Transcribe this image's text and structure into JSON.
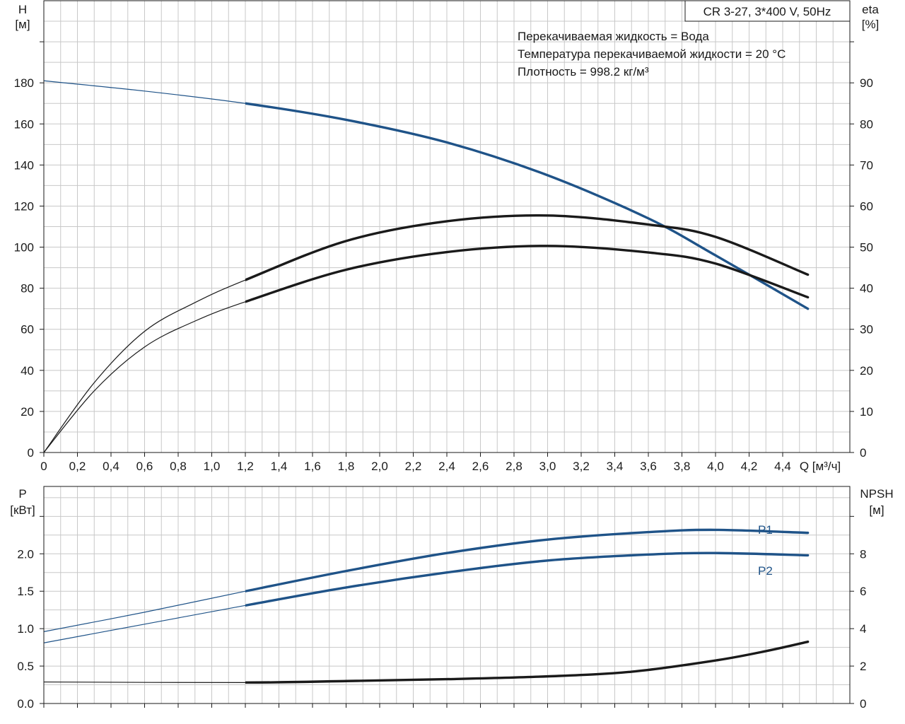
{
  "legend_box": {
    "text": "CR 3-27, 3*400 V, 50Hz"
  },
  "notes": [
    "Перекачиваемая жидкость = Вода",
    "Температура перекачиваемой жидкости = 20 °C",
    "Плотность = 998.2 кг/м³"
  ],
  "chart_data": [
    {
      "type": "line",
      "panel": "top",
      "x_label": "Q [м³/ч]",
      "xlim": [
        0,
        4.8
      ],
      "x_ticks": [
        0,
        0.2,
        0.4,
        0.6,
        0.8,
        1.0,
        1.2,
        1.4,
        1.6,
        1.8,
        2.0,
        2.2,
        2.4,
        2.6,
        2.8,
        3.0,
        3.2,
        3.4,
        3.6,
        3.8,
        4.0,
        4.2,
        4.4
      ],
      "x_tick_labels": [
        "0",
        "0,2",
        "0,4",
        "0,6",
        "0,8",
        "1,0",
        "1,2",
        "1,4",
        "1,6",
        "1,8",
        "2,0",
        "2,2",
        "2,4",
        "2,6",
        "2,8",
        "3,0",
        "3,2",
        "3,4",
        "3,6",
        "3,8",
        "4,0",
        "4,2",
        "4,4"
      ],
      "y_left": {
        "label_line1": "H",
        "label_line2": "[м]",
        "lim": [
          0,
          220
        ],
        "ticks": [
          0,
          20,
          40,
          60,
          80,
          100,
          120,
          140,
          160,
          180
        ]
      },
      "y_right": {
        "label_line1": "eta",
        "label_line2": "[%]",
        "lim": [
          0,
          110
        ],
        "ticks": [
          0,
          10,
          20,
          30,
          40,
          50,
          60,
          70,
          80,
          90
        ]
      },
      "grid": true,
      "operating_range_q": [
        1.2,
        4.55
      ],
      "series": [
        {
          "axis": "left",
          "color": "#1f5388",
          "x": [
            0,
            0.6,
            1.2,
            1.8,
            2.4,
            3.0,
            3.6,
            4.0,
            4.55
          ],
          "y": [
            181,
            176,
            170,
            162,
            151,
            135,
            114,
            96,
            70
          ]
        },
        {
          "axis": "right",
          "color": "#1a1a1a",
          "x": [
            0,
            0.3,
            0.6,
            0.9,
            1.2,
            1.8,
            2.4,
            3.0,
            3.6,
            4.0,
            4.55
          ],
          "y": [
            0,
            17,
            29.5,
            36.5,
            42,
            51.5,
            56.3,
            57.7,
            55.5,
            52.5,
            43.3
          ]
        },
        {
          "axis": "right",
          "color": "#1a1a1a",
          "x": [
            0,
            0.3,
            0.6,
            0.9,
            1.2,
            1.8,
            2.4,
            3.0,
            3.6,
            4.0,
            4.55
          ],
          "y": [
            0,
            15,
            25.7,
            32,
            36.7,
            44.5,
            48.8,
            50.3,
            48.7,
            46,
            37.8
          ]
        }
      ]
    },
    {
      "type": "line",
      "panel": "bottom",
      "xlim": [
        0,
        4.8
      ],
      "y_left": {
        "label_line1": "P",
        "label_line2": "[кВт]",
        "lim": [
          0,
          2.9
        ],
        "ticks": [
          0.0,
          0.5,
          1.0,
          1.5,
          2.0
        ],
        "tick_labels": [
          "0.0",
          "0.5",
          "1.0",
          "1.5",
          "2.0"
        ]
      },
      "y_right": {
        "label_line1": "NPSH",
        "label_line2": "[м]",
        "lim": [
          0,
          11.6
        ],
        "ticks": [
          0,
          2,
          4,
          6,
          8
        ]
      },
      "grid": true,
      "operating_range_q": [
        1.2,
        4.55
      ],
      "series": [
        {
          "name": "P1",
          "axis": "left",
          "color": "#1f5388",
          "x": [
            0,
            0.6,
            1.2,
            1.8,
            2.4,
            3.0,
            3.6,
            4.0,
            4.55
          ],
          "y": [
            0.96,
            1.22,
            1.5,
            1.77,
            2.01,
            2.19,
            2.29,
            2.32,
            2.28
          ]
        },
        {
          "name": "P2",
          "axis": "left",
          "color": "#1f5388",
          "x": [
            0,
            0.6,
            1.2,
            1.8,
            2.4,
            3.0,
            3.6,
            4.0,
            4.55
          ],
          "y": [
            0.81,
            1.06,
            1.31,
            1.55,
            1.75,
            1.91,
            1.99,
            2.01,
            1.98
          ]
        },
        {
          "axis": "right",
          "color": "#1a1a1a",
          "x": [
            0,
            1.2,
            1.8,
            2.4,
            3.0,
            3.5,
            4.0,
            4.3,
            4.55
          ],
          "y": [
            1.15,
            1.12,
            1.2,
            1.3,
            1.45,
            1.7,
            2.3,
            2.8,
            3.3
          ]
        }
      ]
    }
  ]
}
